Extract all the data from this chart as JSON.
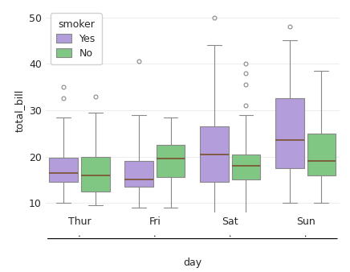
{
  "days": [
    "Thur",
    "Fri",
    "Sat",
    "Sun"
  ],
  "smoker_yes": {
    "Thur": {
      "q1": 14.5,
      "median": 16.5,
      "q3": 19.8,
      "whislo": 10.0,
      "whishi": 28.5,
      "fliers": [
        32.5,
        35.0
      ]
    },
    "Fri": {
      "q1": 13.5,
      "median": 15.0,
      "q3": 19.0,
      "whislo": 9.0,
      "whishi": 29.0,
      "fliers": [
        40.5
      ]
    },
    "Sat": {
      "q1": 14.5,
      "median": 20.5,
      "q3": 26.5,
      "whislo": 6.0,
      "whishi": 44.0,
      "fliers": [
        50.0
      ]
    },
    "Sun": {
      "q1": 17.5,
      "median": 23.5,
      "q3": 32.5,
      "whislo": 10.0,
      "whishi": 45.0,
      "fliers": [
        48.0
      ]
    }
  },
  "smoker_no": {
    "Thur": {
      "q1": 12.5,
      "median": 16.0,
      "q3": 20.0,
      "whislo": 9.5,
      "whishi": 29.5,
      "fliers": [
        33.0
      ]
    },
    "Fri": {
      "q1": 15.5,
      "median": 19.5,
      "q3": 22.5,
      "whislo": 9.0,
      "whishi": 28.5,
      "fliers": []
    },
    "Sat": {
      "q1": 15.0,
      "median": 18.0,
      "q3": 20.5,
      "whislo": 7.5,
      "whishi": 29.0,
      "fliers": [
        31.0,
        35.5,
        38.0,
        40.0
      ]
    },
    "Sun": {
      "q1": 16.0,
      "median": 19.0,
      "q3": 25.0,
      "whislo": 10.0,
      "whishi": 38.5,
      "fliers": []
    }
  },
  "colors": {
    "yes": "#b39ddb",
    "no": "#81c784"
  },
  "edgecolor": "#888888",
  "mediancolor": "#7a4f2e",
  "ylabel": "total_bill",
  "xlabel": "day",
  "legend_title": "smoker",
  "legend_labels": [
    "Yes",
    "No"
  ],
  "ylim": [
    8,
    52
  ],
  "yticks": [
    10,
    20,
    30,
    40,
    50
  ],
  "bg_color": "#ffffff"
}
